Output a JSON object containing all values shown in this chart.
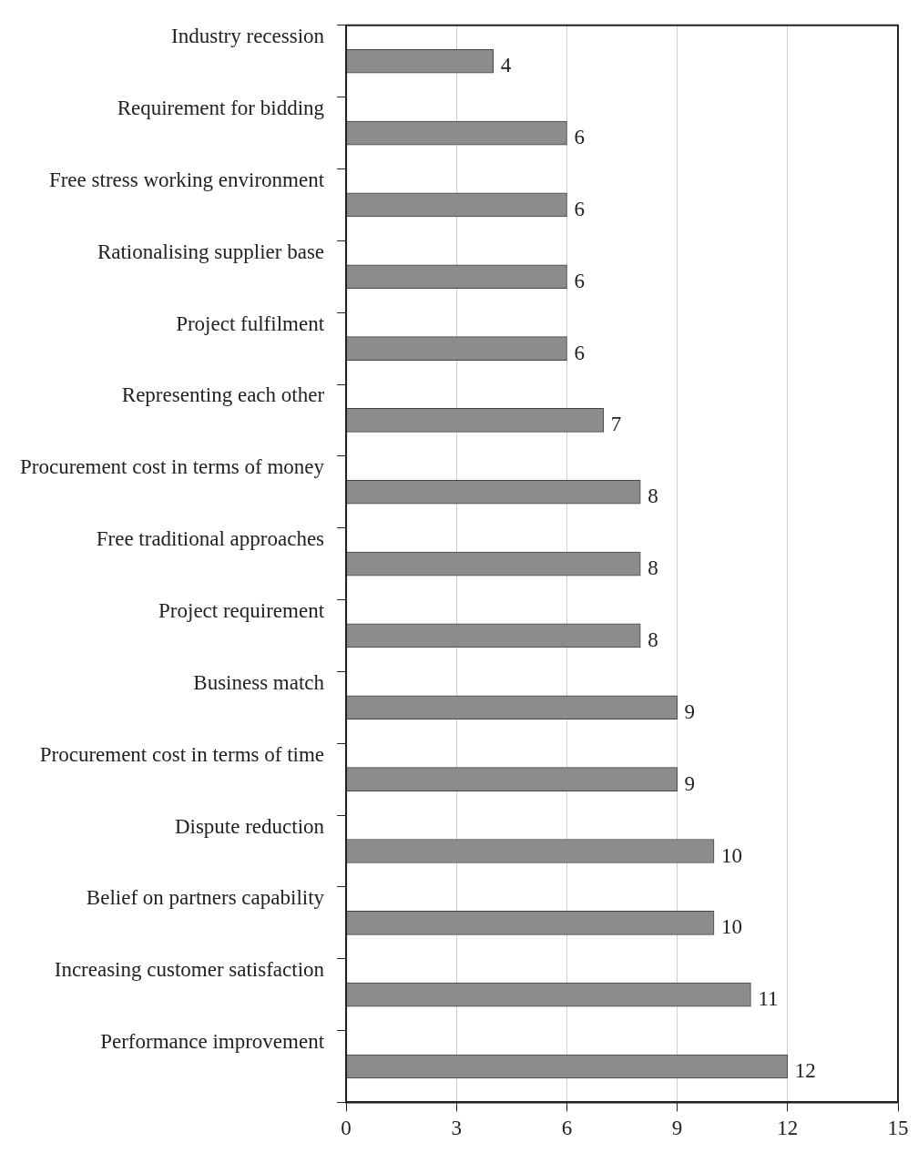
{
  "chart_data": {
    "type": "bar",
    "orientation": "horizontal",
    "categories": [
      "Industry recession",
      "Requirement for bidding",
      "Free stress working environment",
      "Rationalising supplier base",
      "Project fulfilment",
      "Representing each other",
      "Procurement cost in terms of money",
      "Free traditional approaches",
      "Project requirement",
      "Business match",
      "Procurement cost in terms of time",
      "Dispute reduction",
      "Belief on partners capability",
      "Increasing customer satisfaction",
      "Performance improvement"
    ],
    "values": [
      4,
      6,
      6,
      6,
      6,
      7,
      8,
      8,
      8,
      9,
      9,
      10,
      10,
      11,
      12
    ],
    "color": "#8c8c8c",
    "xlim": [
      0,
      15
    ],
    "xticks": [
      0,
      3,
      6,
      9,
      12,
      15
    ],
    "grid": "x",
    "data_labels": true,
    "legend": false
  }
}
